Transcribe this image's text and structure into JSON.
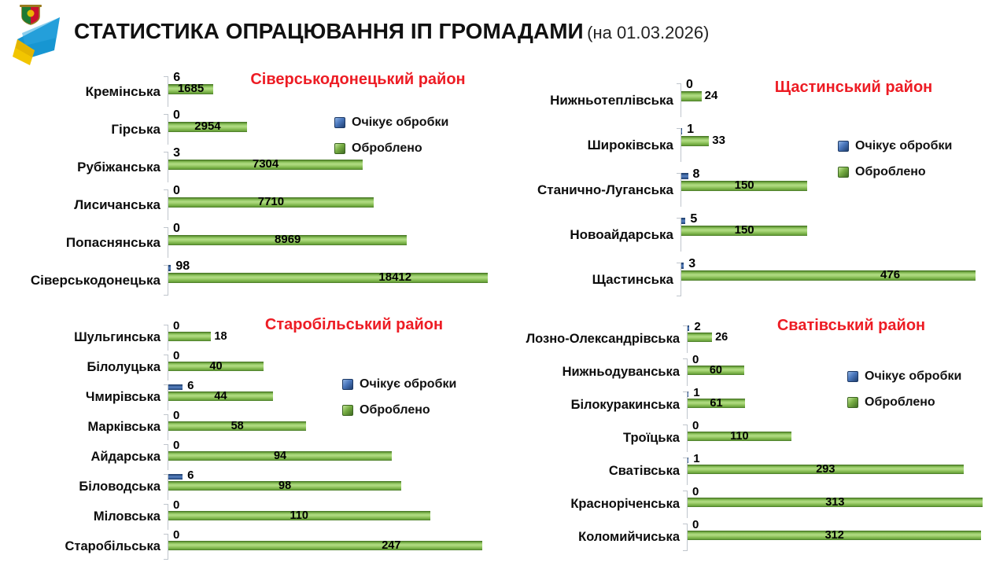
{
  "header": {
    "title": "СТАТИСТИКА ОПРАЦЮВАННЯ ІП ГРОМАДАМИ",
    "date_note": "(на 01.03.2026)"
  },
  "legend": {
    "pending_label": "Очікує обробки",
    "processed_label": "Оброблено"
  },
  "colors": {
    "pending_blue": "#2F5597",
    "processed_green": "#77AD43",
    "district_title_red": "#ED1C24"
  },
  "chart_data": [
    {
      "type": "bar",
      "orientation": "horizontal",
      "title": "Сіверськодонецький район",
      "categories": [
        "Кремінська",
        "Гірська",
        "Рубіжанська",
        "Лисичанська",
        "Попаснянська",
        "Сіверськодонецька"
      ],
      "series": [
        {
          "name": "Очікує обробки",
          "color": "#2F5597",
          "values": [
            6,
            0,
            3,
            0,
            0,
            98
          ]
        },
        {
          "name": "Оброблено",
          "color": "#77AD43",
          "values": [
            1685,
            2954,
            7304,
            7710,
            8969,
            18412
          ]
        }
      ],
      "xlim": [
        0,
        12000
      ],
      "legend_position": "inside-top-right",
      "grid": false,
      "note": "bars longer than axis max are clipped at plot edge"
    },
    {
      "type": "bar",
      "orientation": "horizontal",
      "title": "Щастинський район",
      "categories": [
        "Нижньотеплівська",
        "Широківська",
        "Станично-Луганська",
        "Новоайдарська",
        "Щастинська"
      ],
      "series": [
        {
          "name": "Очікує обробки",
          "color": "#2F5597",
          "values": [
            0,
            1,
            8,
            5,
            3
          ]
        },
        {
          "name": "Оброблено",
          "color": "#77AD43",
          "values": [
            24,
            33,
            150,
            150,
            476
          ]
        }
      ],
      "xlim": [
        0,
        350
      ],
      "legend_position": "inside-top-right",
      "grid": false,
      "note": "bars longer than axis max are clipped at plot edge"
    },
    {
      "type": "bar",
      "orientation": "horizontal",
      "title": "Старобільський район",
      "categories": [
        "Шульгинська",
        "Білолуцька",
        "Чмирівська",
        "Марківська",
        "Айдарська",
        "Біловодська",
        "Міловська",
        "Старобільська"
      ],
      "series": [
        {
          "name": "Очікує обробки",
          "color": "#2F5597",
          "values": [
            0,
            0,
            6,
            0,
            0,
            6,
            0,
            0
          ]
        },
        {
          "name": "Оброблено",
          "color": "#77AD43",
          "values": [
            18,
            40,
            44,
            58,
            94,
            98,
            110,
            247
          ]
        }
      ],
      "xlim": [
        0,
        132
      ],
      "legend_position": "inside-top-right",
      "grid": false,
      "note": "bars longer than axis max are clipped at plot edge"
    },
    {
      "type": "bar",
      "orientation": "horizontal",
      "title": "Сватівський район",
      "categories": [
        "Лозно-Олександрівська",
        "Нижньодуванська",
        "Білокуракинська",
        "Троїцька",
        "Сватівська",
        "Красноріченська",
        "Коломийчиська"
      ],
      "series": [
        {
          "name": "Очікує обробки",
          "color": "#2F5597",
          "values": [
            2,
            0,
            1,
            0,
            1,
            0,
            0
          ]
        },
        {
          "name": "Оброблено",
          "color": "#77AD43",
          "values": [
            26,
            60,
            61,
            110,
            293,
            313,
            312
          ]
        }
      ],
      "xlim": [
        0,
        325
      ],
      "legend_position": "inside-top-right",
      "grid": false
    }
  ]
}
